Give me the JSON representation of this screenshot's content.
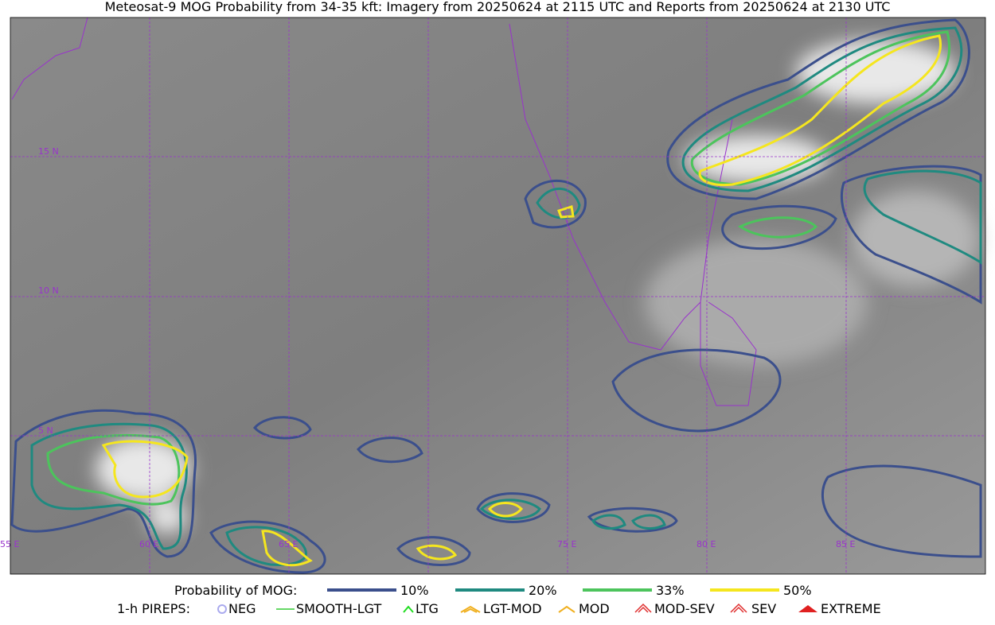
{
  "title": "Meteosat-9 MOG Probability from 34-35 kft: Imagery from 20250624 at 2115 UTC and Reports from 20250624 at 2130 UTC",
  "lat_labels": [
    "15 N",
    "10 N",
    "5 N"
  ],
  "lon_labels": [
    "55 E",
    "60 E",
    "65 E",
    "75 E",
    "80 E",
    "85 E"
  ],
  "probability_legend": {
    "label": "Probability of MOG:",
    "levels": [
      "10%",
      "20%",
      "33%",
      "50%"
    ]
  },
  "pirep_legend": {
    "label": "1-h PIREPS:",
    "items": [
      "NEG",
      "SMOOTH-LGT",
      "LTG",
      "LGT-MOD",
      "MOD",
      "MOD-SEV",
      "SEV",
      "EXTREME"
    ]
  }
}
